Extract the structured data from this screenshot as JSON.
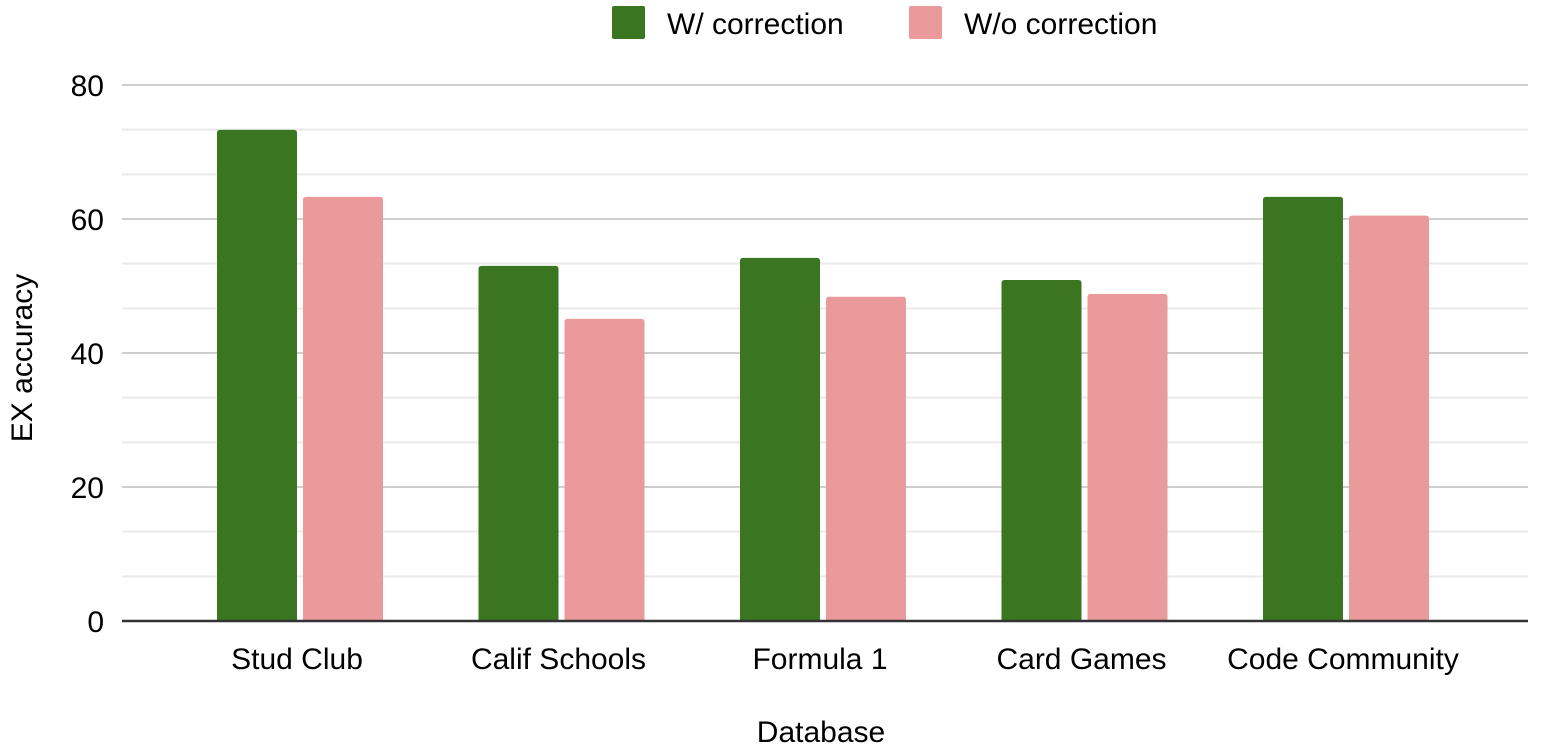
{
  "chart_data": {
    "type": "bar",
    "categories": [
      "Stud Club",
      "Calif Schools",
      "Formula 1",
      "Card Games",
      "Code Community"
    ],
    "series": [
      {
        "name": "W/ correction",
        "color": "#3a7520",
        "values": [
          73.3,
          53.0,
          54.2,
          50.9,
          63.3
        ]
      },
      {
        "name": "W/o correction",
        "color": "#ea9a9a",
        "values": [
          63.3,
          45.1,
          48.4,
          48.8,
          60.5
        ]
      }
    ],
    "xlabel": "Database",
    "ylabel": "EX accuracy",
    "ylim": [
      0,
      80
    ],
    "yticks": [
      0,
      20,
      40,
      60,
      80
    ],
    "minor_gridlines": true,
    "legend_position": "top-center"
  }
}
